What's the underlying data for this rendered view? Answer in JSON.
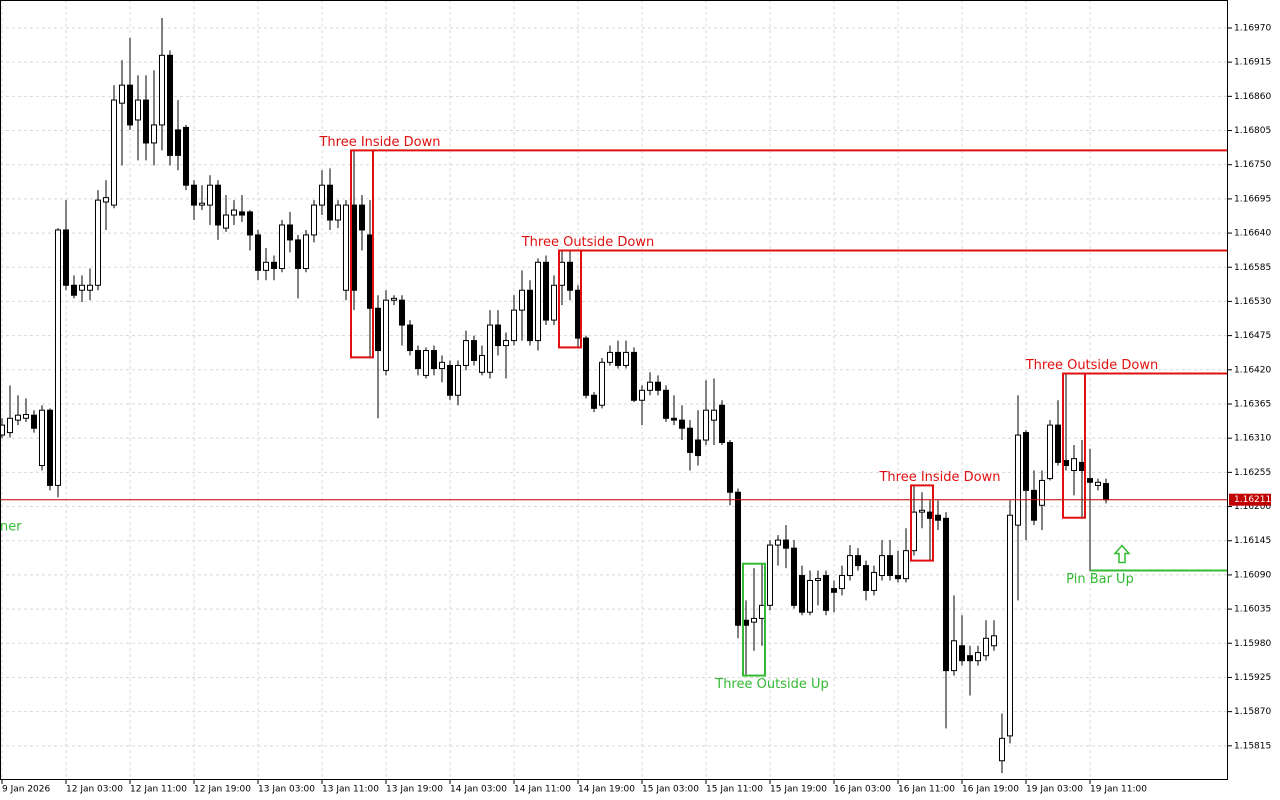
{
  "chart_data": {
    "type": "candlestick",
    "categories": [
      "9 Jan 2026",
      null,
      null,
      null,
      null,
      null,
      null,
      null,
      "12 Jan 03:00",
      null,
      null,
      null,
      null,
      null,
      null,
      null,
      "12 Jan 11:00",
      null,
      null,
      null,
      null,
      null,
      null,
      null,
      "12 Jan 19:00",
      null,
      null,
      null,
      null,
      null,
      null,
      null,
      "13 Jan 03:00",
      null,
      null,
      null,
      null,
      null,
      null,
      null,
      "13 Jan 11:00",
      null,
      null,
      null,
      null,
      null,
      null,
      null,
      "13 Jan 19:00",
      null,
      null,
      null,
      null,
      null,
      null,
      null,
      "14 Jan 03:00",
      null,
      null,
      null,
      null,
      null,
      null,
      null,
      "14 Jan 11:00",
      null,
      null,
      null,
      null,
      null,
      null,
      null,
      "14 Jan 19:00",
      null,
      null,
      null,
      null,
      null,
      null,
      null,
      "15 Jan 03:00",
      null,
      null,
      null,
      null,
      null,
      null,
      null,
      "15 Jan 11:00",
      null,
      null,
      null,
      null,
      null,
      null,
      null,
      "15 Jan 19:00",
      null,
      null,
      null,
      null,
      null,
      null,
      null,
      "16 Jan 03:00",
      null,
      null,
      null,
      null,
      null,
      null,
      null,
      "16 Jan 11:00",
      null,
      null,
      null,
      null,
      null,
      null,
      null,
      "16 Jan 19:00",
      null,
      null,
      null,
      null,
      null,
      null,
      null,
      "19 Jan 03:00",
      null,
      null,
      null,
      null,
      null,
      null,
      null,
      "19 Jan 11:00",
      null,
      null
    ],
    "open": [
      1.16315,
      1.16319,
      1.16339,
      1.16342,
      1.16347,
      1.16266,
      1.16355,
      1.16234,
      1.16645,
      1.16556,
      1.16548,
      1.16548,
      1.16556,
      1.1669,
      1.16685,
      1.16849,
      1.16878,
      1.16822,
      1.16854,
      1.16785,
      1.16814,
      1.16926,
      1.16806,
      1.1681,
      1.16717,
      1.16685,
      1.16685,
      1.16717,
      1.16648,
      1.16669,
      1.16674,
      1.16674,
      1.16637,
      1.1658,
      1.16593,
      1.16583,
      1.16653,
      1.16629,
      1.16583,
      1.16637,
      1.16685,
      1.16717,
      1.16661,
      1.16548,
      1.16685,
      1.16685,
      1.16637,
      1.16519,
      1.16419,
      1.16532,
      1.16532,
      1.16492,
      1.16451,
      1.16411,
      1.16451,
      1.16422,
      1.16427,
      1.16379,
      1.16427,
      1.16467,
      1.16416,
      1.16416,
      1.16492,
      1.16459,
      1.16467,
      1.16516,
      1.16548,
      1.16467,
      1.16593,
      1.165,
      1.16556,
      1.16593,
      1.16548,
      1.16471,
      1.16379,
      1.16363,
      1.16432,
      1.16448,
      1.16427,
      1.16448,
      1.16371,
      1.16387,
      1.164,
      1.16387,
      1.16342,
      1.16339,
      1.16326,
      1.16307,
      1.16307,
      1.16339,
      1.16363,
      1.16303,
      1.16223,
      1.16017,
      1.16014,
      1.1602,
      1.16041,
      1.16138,
      1.16146,
      1.16133,
      1.16089,
      1.1603,
      1.16081,
      1.16089,
      1.16068,
      1.16068,
      1.16089,
      1.16121,
      1.16105,
      1.16065,
      1.16089,
      1.16121,
      1.16089,
      1.16084,
      1.16129,
      1.16191,
      1.16191,
      1.16186,
      1.16181,
      1.15936,
      1.15976,
      1.1596,
      1.15952,
      1.1596,
      1.15976,
      1.15791,
      1.15831,
      1.1617,
      1.16319,
      1.16226,
      1.16202,
      1.16245,
      1.16331,
      1.16274,
      1.16258,
      1.16271,
      1.16245,
      1.16234,
      1.16237
    ],
    "high": [
      1.16342,
      1.16395,
      1.16379,
      1.16374,
      1.16355,
      1.16363,
      1.16358,
      1.16648,
      1.16693,
      1.16572,
      1.16572,
      1.16583,
      1.16709,
      1.16725,
      1.16878,
      1.16918,
      1.16954,
      1.16894,
      1.16894,
      1.16902,
      1.16986,
      1.16934,
      1.16854,
      1.16814,
      1.16725,
      1.16717,
      1.16733,
      1.16725,
      1.16701,
      1.16693,
      1.16701,
      1.16677,
      1.16645,
      1.16616,
      1.16604,
      1.16661,
      1.16674,
      1.16637,
      1.16645,
      1.16693,
      1.16741,
      1.16744,
      1.16693,
      1.16693,
      1.16773,
      1.16701,
      1.16693,
      1.1654,
      1.16548,
      1.1654,
      1.1654,
      1.165,
      1.16459,
      1.16456,
      1.16459,
      1.16443,
      1.16435,
      1.16435,
      1.16483,
      1.16475,
      1.16459,
      1.16516,
      1.16516,
      1.1648,
      1.1654,
      1.1658,
      1.16564,
      1.16599,
      1.16604,
      1.16572,
      1.16612,
      1.16612,
      1.16556,
      1.16475,
      1.16384,
      1.16439,
      1.16459,
      1.16467,
      1.16467,
      1.16456,
      1.16395,
      1.16416,
      1.16411,
      1.16395,
      1.16379,
      1.16363,
      1.16339,
      1.16355,
      1.16403,
      1.16406,
      1.16371,
      1.16307,
      1.16229,
      1.16049,
      1.16101,
      1.16108,
      1.16146,
      1.16154,
      1.1617,
      1.16146,
      1.16105,
      1.16097,
      1.16097,
      1.16097,
      1.16081,
      1.16105,
      1.16138,
      1.16133,
      1.16113,
      1.16105,
      1.16146,
      1.16146,
      1.16129,
      1.16165,
      1.16234,
      1.16223,
      1.1621,
      1.1621,
      1.16191,
      1.16057,
      1.16025,
      1.15976,
      1.15976,
      1.16017,
      1.16017,
      1.15867,
      1.1621,
      1.16379,
      1.16323,
      1.16258,
      1.16258,
      1.16339,
      1.16371,
      1.16414,
      1.16299,
      1.16307,
      1.16293,
      1.16245,
      1.16245
    ],
    "low": [
      1.1631,
      1.16311,
      1.16331,
      1.16336,
      1.16319,
      1.16258,
      1.16226,
      1.16215,
      1.16548,
      1.16535,
      1.16529,
      1.16532,
      1.16548,
      1.16645,
      1.1668,
      1.16749,
      1.16806,
      1.16757,
      1.16757,
      1.16749,
      1.16773,
      1.16749,
      1.16741,
      1.16709,
      1.16661,
      1.16677,
      1.16653,
      1.16629,
      1.16642,
      1.16653,
      1.16658,
      1.16612,
      1.16564,
      1.16564,
      1.16564,
      1.16577,
      1.16609,
      1.16535,
      1.16577,
      1.16625,
      1.16669,
      1.16645,
      1.16648,
      1.16532,
      1.16516,
      1.16612,
      1.1644,
      1.16342,
      1.16411,
      1.16524,
      1.16459,
      1.16443,
      1.16411,
      1.16406,
      1.16411,
      1.164,
      1.16371,
      1.16363,
      1.16419,
      1.16427,
      1.16411,
      1.16406,
      1.16443,
      1.16406,
      1.16459,
      1.16467,
      1.16459,
      1.16451,
      1.16492,
      1.16492,
      1.16524,
      1.16532,
      1.16456,
      1.16374,
      1.16352,
      1.16358,
      1.16427,
      1.16422,
      1.16422,
      1.16368,
      1.16331,
      1.16379,
      1.16379,
      1.16336,
      1.16331,
      1.16307,
      1.16258,
      1.16266,
      1.16299,
      1.16299,
      1.16299,
      1.16202,
      1.15988,
      1.15928,
      1.15968,
      1.15976,
      1.16033,
      1.16105,
      1.16101,
      1.16036,
      1.16025,
      1.16025,
      1.16041,
      1.16025,
      1.1603,
      1.16057,
      1.16081,
      1.16097,
      1.16049,
      1.16057,
      1.16081,
      1.16081,
      1.16078,
      1.16078,
      1.16121,
      1.16165,
      1.16113,
      1.16162,
      1.15843,
      1.15928,
      1.15944,
      1.15896,
      1.15944,
      1.15952,
      1.15968,
      1.15771,
      1.15819,
      1.16049,
      1.16146,
      1.1617,
      1.16162,
      1.16242,
      1.16266,
      1.16258,
      1.16218,
      1.16182,
      1.16097,
      1.16226,
      1.16205
    ],
    "close": [
      1.16331,
      1.16342,
      1.16347,
      1.16348,
      1.16326,
      1.16355,
      1.16234,
      1.16645,
      1.16556,
      1.1654,
      1.16556,
      1.16556,
      1.16693,
      1.16697,
      1.16854,
      1.16878,
      1.16814,
      1.16854,
      1.16785,
      1.16814,
      1.16926,
      1.16765,
      1.16765,
      1.16717,
      1.16685,
      1.16688,
      1.16717,
      1.16653,
      1.16669,
      1.16677,
      1.16669,
      1.16637,
      1.1658,
      1.16593,
      1.16583,
      1.16653,
      1.16629,
      1.16583,
      1.16637,
      1.16685,
      1.16717,
      1.16661,
      1.16685,
      1.16685,
      1.16548,
      1.16645,
      1.16519,
      1.16451,
      1.16532,
      1.16535,
      1.16492,
      1.16451,
      1.16422,
      1.16451,
      1.16422,
      1.16432,
      1.16379,
      1.16427,
      1.16467,
      1.16435,
      1.16443,
      1.16492,
      1.16459,
      1.16467,
      1.16516,
      1.16548,
      1.16467,
      1.16593,
      1.165,
      1.16556,
      1.16593,
      1.16548,
      1.16471,
      1.16379,
      1.16358,
      1.16432,
      1.16448,
      1.16427,
      1.16448,
      1.16371,
      1.16387,
      1.164,
      1.16387,
      1.16342,
      1.16339,
      1.16326,
      1.16287,
      1.16282,
      1.16355,
      1.16355,
      1.16303,
      1.16223,
      1.16009,
      1.16009,
      1.1602,
      1.16041,
      1.16138,
      1.16146,
      1.16133,
      1.16041,
      1.1603,
      1.16081,
      1.16084,
      1.16033,
      1.16062,
      1.16089,
      1.16121,
      1.16105,
      1.16065,
      1.16094,
      1.16121,
      1.16089,
      1.16084,
      1.16129,
      1.16191,
      1.16194,
      1.16181,
      1.16178,
      1.15936,
      1.15984,
      1.15952,
      1.15952,
      1.15965,
      1.15988,
      1.15992,
      1.15827,
      1.16186,
      1.16315,
      1.16226,
      1.16178,
      1.16242,
      1.16331,
      1.16271,
      1.16266,
      1.16277,
      1.16258,
      1.16239,
      1.16239,
      1.16211
    ],
    "up_color": "#ffffff",
    "down_color": "#000000",
    "ylim": [
      1.1576,
      1.17015
    ],
    "yticks": [
      {
        "value": 1.1697,
        "label": "1.16970"
      },
      {
        "value": 1.16915,
        "label": "1.16915"
      },
      {
        "value": 1.1686,
        "label": "1.16860"
      },
      {
        "value": 1.16805,
        "label": "1.16805"
      },
      {
        "value": 1.1675,
        "label": "1.16750"
      },
      {
        "value": 1.16695,
        "label": "1.16695"
      },
      {
        "value": 1.1664,
        "label": "1.16640"
      },
      {
        "value": 1.16585,
        "label": "1.16585"
      },
      {
        "value": 1.1653,
        "label": "1.16530"
      },
      {
        "value": 1.16475,
        "label": "1.16475"
      },
      {
        "value": 1.1642,
        "label": "1.16420"
      },
      {
        "value": 1.16365,
        "label": "1.16365"
      },
      {
        "value": 1.1631,
        "label": "1.16310"
      },
      {
        "value": 1.16255,
        "label": "1.16255"
      },
      {
        "value": 1.162,
        "label": "1.16200"
      },
      {
        "value": 1.16145,
        "label": "1.16145"
      },
      {
        "value": 1.1609,
        "label": "1.16090"
      },
      {
        "value": 1.16035,
        "label": "1.16035"
      },
      {
        "value": 1.1598,
        "label": "1.15980"
      },
      {
        "value": 1.15925,
        "label": "1.15925"
      },
      {
        "value": 1.1587,
        "label": "1.15870"
      },
      {
        "value": 1.15815,
        "label": "1.15815"
      }
    ],
    "grid": true,
    "last_price": 1.16211,
    "last_price_color": "#c00000",
    "patterns": [
      {
        "label": "Three Inside Down",
        "start": 44,
        "end": 46,
        "top": 1.16773,
        "bottom": 1.1644,
        "color": "#e01010",
        "direction": "down",
        "extend": true
      },
      {
        "label": "Three Outside Down",
        "start": 70,
        "end": 72,
        "top": 1.16612,
        "bottom": 1.16456,
        "color": "#e01010",
        "direction": "down",
        "extend": true
      },
      {
        "label": "Three Outside Up",
        "start": 93,
        "end": 95,
        "top": 1.16108,
        "bottom": 1.15928,
        "color": "#33bb33",
        "direction": "up",
        "extend": false
      },
      {
        "label": "Three Inside Down",
        "start": 114,
        "end": 116,
        "top": 1.16234,
        "bottom": 1.16113,
        "color": "#e01010",
        "direction": "down",
        "extend": false
      },
      {
        "label": "Three Outside Down",
        "start": 133,
        "end": 135,
        "top": 1.16414,
        "bottom": 1.16182,
        "color": "#e01010",
        "direction": "down",
        "extend": true
      }
    ],
    "pin_bar": {
      "label": "Pin Bar Up",
      "index": 136,
      "level": 1.16097,
      "color": "#33bb33"
    },
    "edge_label": {
      "text": "ner",
      "color": "#33bb33"
    }
  }
}
